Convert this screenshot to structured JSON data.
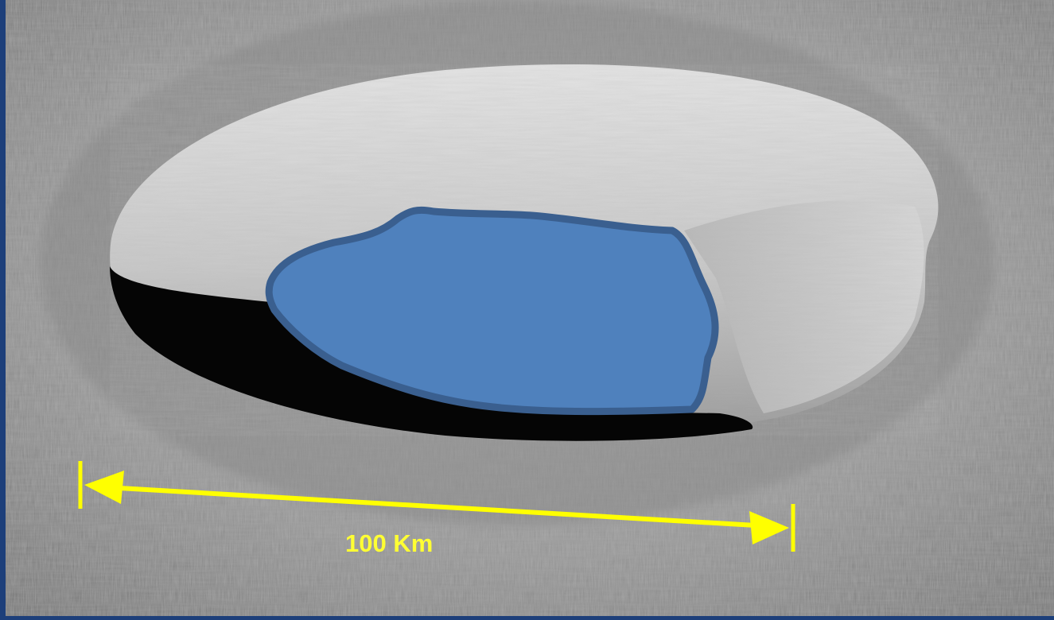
{
  "scene": {
    "subject": "lunar-crater-with-highlighted-floor",
    "colors": {
      "frame_border": "#1d3f7a",
      "highlight_fill": "#4f81bd",
      "highlight_stroke": "#3a5f8f",
      "scale_bar": "#ffff00"
    }
  },
  "scale_bar": {
    "label": "100 Km",
    "distance_km": 100,
    "arrow_style": "double-headed"
  }
}
